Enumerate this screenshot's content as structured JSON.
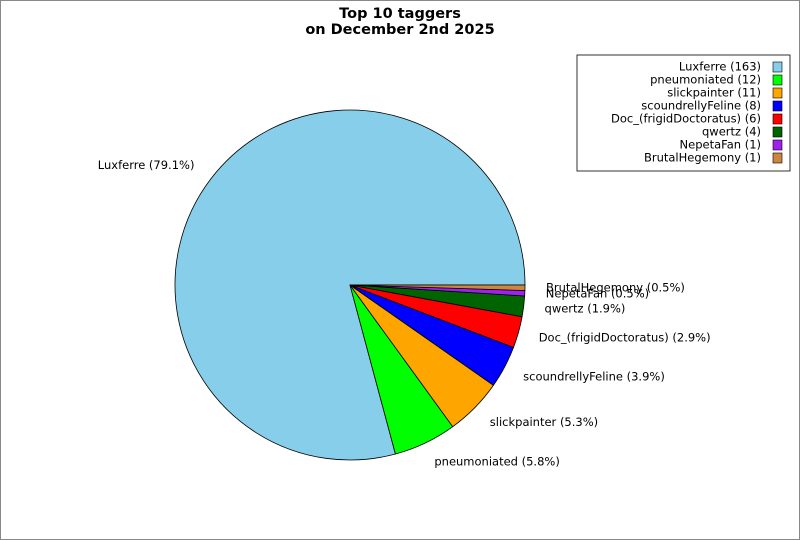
{
  "chart_data": {
    "type": "pie",
    "title": "Top 10 taggers",
    "subtitle": "on December 2nd 2025",
    "categories": [
      "Luxferre (163)",
      "pneumoniated (12)",
      "slickpainter (11)",
      "scoundrellyFeline (8)",
      "Doc_(frigidDoctoratus) (6)",
      "qwertz (4)",
      "NepetaFan (1)",
      "BrutalHegemony (1)"
    ],
    "values": [
      79.1,
      5.8,
      5.3,
      3.9,
      2.9,
      1.9,
      0.5,
      0.5
    ],
    "value_labels": [
      "Luxferre (79.1%)",
      "pneumoniated (5.8%)",
      "slickpainter (5.3%)",
      "scoundrellyFeline (3.9%)",
      "Doc_(frigidDoctoratus) (2.9%)",
      "qwertz (1.9%)",
      "NepetaFan (0.5%)",
      "BrutalHegemony (0.5%)"
    ],
    "colors": [
      "#87ceeb",
      "#00ff00",
      "#ffa500",
      "#0000ff",
      "#ff0000",
      "#006400",
      "#a020f0",
      "#cd853f"
    ],
    "legend": "upper right"
  }
}
